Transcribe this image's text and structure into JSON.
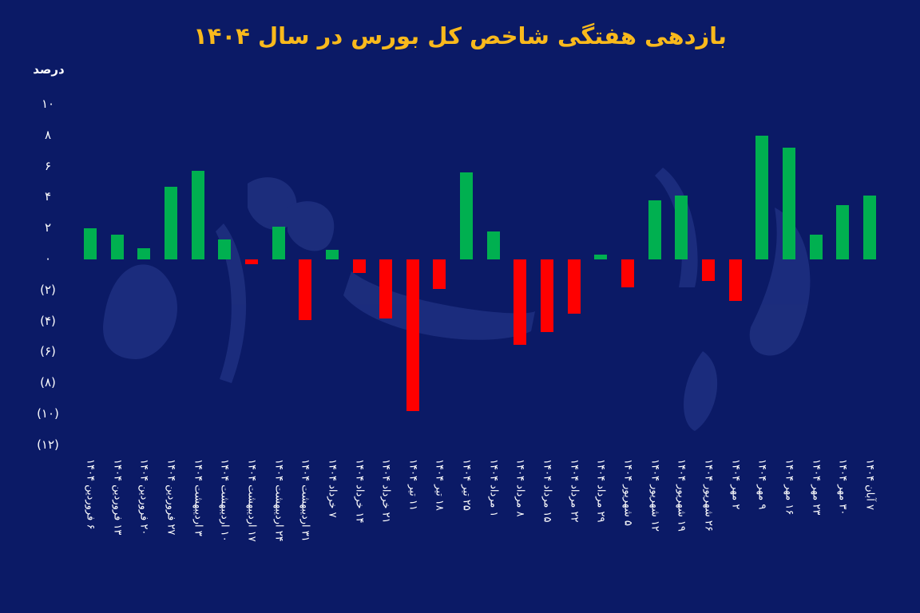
{
  "title": "بازدهی هفتگی شاخص کل بورس در سال ۱۴۰۴",
  "unit_label": "درصد",
  "colors": {
    "background": "#0b1a66",
    "title": "#f9b91c",
    "positive": "#00b050",
    "negative": "#ff0000",
    "text": "#ffffff"
  },
  "y_ticks": [
    {
      "value": 10,
      "label": "۱۰"
    },
    {
      "value": 8,
      "label": "۸"
    },
    {
      "value": 6,
      "label": "۶"
    },
    {
      "value": 4,
      "label": "۴"
    },
    {
      "value": 2,
      "label": "۲"
    },
    {
      "value": 0,
      "label": "۰"
    },
    {
      "value": -2,
      "label": "(۲)"
    },
    {
      "value": -4,
      "label": "(۴)"
    },
    {
      "value": -6,
      "label": "(۶)"
    },
    {
      "value": -8,
      "label": "(۸)"
    },
    {
      "value": -10,
      "label": "(۱۰)"
    },
    {
      "value": -12,
      "label": "(۱۲)"
    }
  ],
  "chart_data": {
    "type": "bar",
    "title": "بازدهی هفتگی شاخص کل بورس در سال ۱۴۰۴",
    "xlabel": "",
    "ylabel": "درصد",
    "ylim": [
      -12,
      10
    ],
    "grid": false,
    "legend": null,
    "categories": [
      "۶ فروردین ۱۴۰۴",
      "۱۳ فروردین ۱۴۰۴",
      "۲۰ فروردین ۱۴۰۴",
      "۲۷ فروردین ۱۴۰۴",
      "۳ اردیبهشت ۱۴۰۴",
      "۱۰ اردیبهشت ۱۴۰۴",
      "۱۷ اردیبهشت ۱۴۰۴",
      "۲۴ اردیبهشت ۱۴۰۴",
      "۳۱ اردیبهشت ۱۴۰۴",
      "۷ خرداد ۱۴۰۴",
      "۱۴ خرداد ۱۴۰۴",
      "۲۱ خرداد ۱۴۰۴",
      "۱۱ تیر ۱۴۰۴",
      "۱۸ تیر ۱۴۰۴",
      "۲۵ تیر ۱۴۰۴",
      "۱ مرداد ۱۴۰۴",
      "۸ مرداد ۱۴۰۴",
      "۱۵ مرداد ۱۴۰۴",
      "۲۲ مرداد ۱۴۰۴",
      "۲۹ مرداد ۱۴۰۴",
      "۵ شهریور ۱۴۰۴",
      "۱۲ شهریور ۱۴۰۴",
      "۱۹ شهریور ۱۴۰۴",
      "۲۶ شهریور ۱۴۰۴",
      "۲ مهر ۱۴۰۴",
      "۹ مهر ۱۴۰۴",
      "۱۶ مهر ۱۴۰۴",
      "۲۳ مهر ۱۴۰۴",
      "۳۰ مهر ۱۴۰۴",
      "۷ آبان ۱۴۰۴"
    ],
    "values": [
      2.0,
      1.6,
      0.7,
      4.7,
      5.7,
      1.3,
      -0.3,
      2.1,
      -3.9,
      0.6,
      -0.9,
      -3.8,
      -9.8,
      -1.9,
      5.6,
      1.8,
      -5.5,
      -4.7,
      -3.5,
      0.3,
      -1.8,
      3.8,
      4.1,
      -1.4,
      -2.7,
      8.0,
      7.2,
      1.6,
      3.5,
      4.1
    ],
    "positive_color": "#00b050",
    "negative_color": "#ff0000"
  }
}
